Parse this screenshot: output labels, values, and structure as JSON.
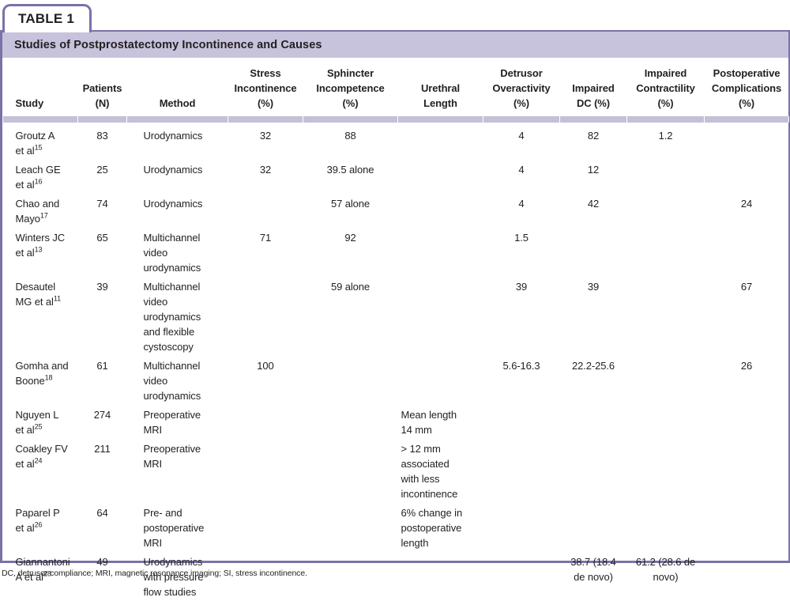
{
  "tab_label": "TABLE 1",
  "title": "Studies of Postprostatectomy Incontinence and Causes",
  "columns": [
    "Study",
    "Patients\n(N)",
    "Method",
    "Stress\nIncontinence\n(%)",
    "Sphincter\nIncompetence\n(%)",
    "Urethral\nLength",
    "Detrusor\nOveractivity\n(%)",
    "Impaired\nDC (%)",
    "Impaired\nContractility\n(%)",
    "Postoperative\nComplications\n(%)"
  ],
  "rows": [
    {
      "study": "Groutz A\net al",
      "ref": "15",
      "patients": "83",
      "method": "Urodynamics",
      "stress": "32",
      "sphincter": "88",
      "urethral": "",
      "detrusor": "4",
      "impaired_dc": "82",
      "contractility": "1.2",
      "postop": ""
    },
    {
      "study": "Leach GE\net al",
      "ref": "16",
      "patients": "25",
      "method": "Urodynamics",
      "stress": "32",
      "sphincter": "39.5 alone",
      "urethral": "",
      "detrusor": "4",
      "impaired_dc": "12",
      "contractility": "",
      "postop": ""
    },
    {
      "study": "Chao and\nMayo",
      "ref": "17",
      "patients": "74",
      "method": "Urodynamics",
      "stress": "",
      "sphincter": "57 alone",
      "urethral": "",
      "detrusor": "4",
      "impaired_dc": "42",
      "contractility": "",
      "postop": "24"
    },
    {
      "study": "Winters JC\net al",
      "ref": "13",
      "patients": "65",
      "method": "Multichannel\nvideo\nurodynamics",
      "stress": "71",
      "sphincter": "92",
      "urethral": "",
      "detrusor": "1.5",
      "impaired_dc": "",
      "contractility": "",
      "postop": ""
    },
    {
      "study": "Desautel\nMG et al",
      "ref": "11",
      "patients": "39",
      "method": "Multichannel\nvideo\nurodynamics\nand flexible\ncystoscopy",
      "stress": "",
      "sphincter": "59 alone",
      "urethral": "",
      "detrusor": "39",
      "impaired_dc": "39",
      "contractility": "",
      "postop": "67"
    },
    {
      "study": "Gomha and\nBoone",
      "ref": "18",
      "patients": "61",
      "method": "Multichannel\nvideo\nurodynamics",
      "stress": "100",
      "sphincter": "",
      "urethral": "",
      "detrusor": "5.6-16.3",
      "impaired_dc": "22.2-25.6",
      "contractility": "",
      "postop": "26"
    },
    {
      "study": "Nguyen L\net al",
      "ref": "25",
      "patients": "274",
      "method": "Preoperative\nMRI",
      "stress": "",
      "sphincter": "",
      "urethral": "Mean length\n14 mm",
      "detrusor": "",
      "impaired_dc": "",
      "contractility": "",
      "postop": ""
    },
    {
      "study": "Coakley FV\net al",
      "ref": "24",
      "patients": "211",
      "method": "Preoperative\nMRI",
      "stress": "",
      "sphincter": "",
      "urethral": "> 12 mm\nassociated\nwith less\nincontinence",
      "detrusor": "",
      "impaired_dc": "",
      "contractility": "",
      "postop": ""
    },
    {
      "study": "Paparel P\net al",
      "ref": "26",
      "patients": "64",
      "method": "Pre- and\npostoperative\nMRI",
      "stress": "",
      "sphincter": "",
      "urethral": "6% change in\npostoperative\nlength",
      "detrusor": "",
      "impaired_dc": "",
      "contractility": "",
      "postop": ""
    },
    {
      "study": "Giannantoni\nA et al",
      "ref": "28",
      "patients": "49",
      "method": "Urodynamics\nwith pressure\nflow studies",
      "stress": "",
      "sphincter": "",
      "urethral": "",
      "detrusor": "",
      "impaired_dc": "38.7 (18.4\nde novo)",
      "contractility": "61.2 (28.6 de\nnovo)",
      "postop": ""
    }
  ],
  "footnote": "DC, detrusor compliance; MRI, magnetic resonance imaging; SI, stress incontinence.",
  "colors": {
    "border_purple": "#7b72a8",
    "band_lavender": "#c8c3dc",
    "separator_lavender": "#c5c0d8",
    "text": "#231f20"
  }
}
